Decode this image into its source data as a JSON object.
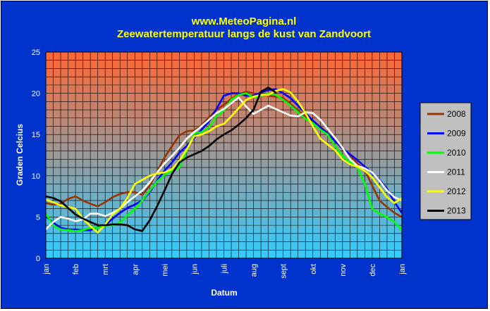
{
  "chart_data": {
    "type": "line",
    "title": "www.MeteoPagina.nl",
    "subtitle": "Zeewatertemperatuur langs de kust van Zandvoort",
    "xlabel": "Datum",
    "ylabel": "Graden Celcius",
    "ylim": [
      0,
      25
    ],
    "yticks": [
      0,
      5,
      10,
      15,
      20,
      25
    ],
    "xlim": [
      0,
      12
    ],
    "xtick_labels": [
      "jan",
      "feb",
      "mrt",
      "apr",
      "mei",
      "jun",
      "juli",
      "aug",
      "sept",
      "okt",
      "nov",
      "dec",
      "jan"
    ],
    "grid": true,
    "legend": "right",
    "background_gradient": [
      "#ff6633",
      "#33ccff"
    ],
    "colors": {
      "2008": "#993300",
      "2009": "#0000ff",
      "2010": "#00ff00",
      "2011": "#ffffff",
      "2012": "#ffff00",
      "2013": "#000000"
    },
    "series": [
      {
        "name": "2008",
        "x": [
          0,
          0.25,
          0.5,
          0.75,
          1.0,
          1.25,
          1.5,
          1.75,
          2.0,
          2.25,
          2.5,
          2.75,
          3.0,
          3.25,
          3.5,
          3.75,
          4.0,
          4.25,
          4.5,
          4.75,
          5.0,
          5.25,
          5.5,
          5.75,
          6.0,
          6.25,
          6.5,
          6.75,
          7.0,
          7.25,
          7.5,
          7.75,
          8.0,
          8.25,
          8.5,
          8.75,
          9.0,
          9.25,
          9.5,
          9.75,
          10.0,
          10.25,
          10.5,
          10.75,
          11.0,
          11.25,
          11.5,
          11.75,
          12.0
        ],
        "values": [
          6.7,
          6.5,
          6.6,
          7.2,
          7.5,
          7.0,
          6.6,
          6.3,
          6.8,
          7.4,
          7.8,
          8.0,
          8.0,
          7.7,
          8.8,
          10.5,
          12.2,
          13.6,
          14.9,
          15.4,
          15.5,
          16.1,
          17.1,
          18.0,
          18.6,
          19.3,
          19.9,
          20.2,
          20.0,
          19.8,
          19.7,
          19.6,
          19.4,
          18.7,
          17.9,
          17.2,
          16.6,
          15.9,
          15.2,
          14.3,
          13.3,
          12.5,
          11.5,
          10.7,
          8.8,
          7.0,
          6.2,
          5.5,
          5.0
        ]
      },
      {
        "name": "2009",
        "x": [
          0,
          0.25,
          0.5,
          0.75,
          1.0,
          1.25,
          1.5,
          1.75,
          2.0,
          2.25,
          2.5,
          2.75,
          3.0,
          3.25,
          3.5,
          3.75,
          4.0,
          4.25,
          4.5,
          4.75,
          5.0,
          5.25,
          5.5,
          5.75,
          6.0,
          6.25,
          6.5,
          6.75,
          7.0,
          7.25,
          7.5,
          7.75,
          8.0,
          8.25,
          8.5,
          8.75,
          9.0,
          9.25,
          9.5,
          9.75,
          10.0,
          10.25,
          10.5,
          10.75,
          11.0,
          11.25,
          11.5,
          11.75,
          12.0
        ],
        "values": [
          5.1,
          4.3,
          3.7,
          3.5,
          3.5,
          3.4,
          3.4,
          3.8,
          4.0,
          4.8,
          5.5,
          6.1,
          6.5,
          7.0,
          8.0,
          9.4,
          10.6,
          11.6,
          12.8,
          13.6,
          14.6,
          15.6,
          16.6,
          18.1,
          19.7,
          20.0,
          20.0,
          19.7,
          19.7,
          20.1,
          20.4,
          20.5,
          20.0,
          19.4,
          18.5,
          17.6,
          16.7,
          15.9,
          15.1,
          14.2,
          13.3,
          12.6,
          11.9,
          11.1,
          10.3,
          9.5,
          8.4,
          6.8,
          5.5
        ]
      },
      {
        "name": "2010",
        "x": [
          0,
          0.25,
          0.5,
          0.75,
          1.0,
          1.25,
          1.5,
          1.75,
          2.0,
          2.25,
          2.5,
          2.75,
          3.0,
          3.25,
          3.5,
          3.75,
          4.0,
          4.25,
          4.5,
          4.75,
          5.0,
          5.25,
          5.5,
          5.75,
          6.0,
          6.25,
          6.5,
          6.75,
          7.0,
          7.25,
          7.5,
          7.75,
          8.0,
          8.25,
          8.5,
          8.75,
          9.0,
          9.25,
          9.5,
          9.75,
          10.0,
          10.25,
          10.5,
          10.75,
          11.0,
          11.25,
          11.5,
          11.75,
          12.0
        ],
        "values": [
          5.4,
          4.0,
          3.5,
          3.4,
          3.3,
          3.4,
          3.7,
          3.7,
          3.9,
          4.0,
          4.3,
          5.2,
          6.0,
          7.0,
          8.2,
          9.3,
          10.1,
          10.6,
          11.0,
          13.1,
          15.1,
          15.3,
          15.9,
          17.2,
          17.9,
          19.2,
          19.8,
          20.0,
          19.5,
          19.7,
          20.0,
          19.8,
          19.2,
          18.5,
          17.7,
          16.9,
          16.4,
          15.6,
          15.0,
          13.6,
          12.4,
          11.7,
          11.0,
          9.0,
          6.0,
          5.4,
          5.0,
          4.4,
          3.4
        ]
      },
      {
        "name": "2011",
        "x": [
          0,
          0.25,
          0.5,
          0.75,
          1.0,
          1.25,
          1.5,
          1.75,
          2.0,
          2.25,
          2.5,
          2.75,
          3.0,
          3.25,
          3.5,
          3.75,
          4.0,
          4.25,
          4.5,
          4.75,
          5.0,
          5.25,
          5.5,
          5.75,
          6.0,
          6.25,
          6.5,
          6.75,
          7.0,
          7.25,
          7.5,
          7.75,
          8.0,
          8.25,
          8.5,
          8.75,
          9.0,
          9.25,
          9.5,
          9.75,
          10.0,
          10.25,
          10.5,
          10.75,
          11.0,
          11.25,
          11.5,
          11.75,
          12.0
        ],
        "values": [
          3.5,
          4.4,
          5.0,
          4.8,
          4.5,
          4.7,
          5.4,
          5.4,
          5.1,
          5.5,
          6.0,
          6.8,
          7.5,
          8.2,
          9.2,
          10.4,
          11.5,
          12.4,
          13.4,
          14.5,
          15.3,
          16.0,
          16.8,
          17.6,
          18.1,
          18.8,
          19.5,
          18.4,
          17.5,
          18.0,
          18.5,
          18.1,
          17.7,
          17.3,
          17.2,
          17.7,
          17.6,
          16.8,
          15.7,
          14.6,
          13.4,
          12.0,
          11.2,
          10.9,
          10.4,
          9.4,
          8.2,
          7.4,
          7.0
        ]
      },
      {
        "name": "2012",
        "x": [
          0,
          0.25,
          0.5,
          0.75,
          1.0,
          1.25,
          1.5,
          1.75,
          2.0,
          2.25,
          2.5,
          2.75,
          3.0,
          3.25,
          3.5,
          3.75,
          4.0,
          4.25,
          4.5,
          4.75,
          5.0,
          5.25,
          5.5,
          5.75,
          6.0,
          6.25,
          6.5,
          6.75,
          7.0,
          7.25,
          7.5,
          7.75,
          8.0,
          8.25,
          8.5,
          8.75,
          9.0,
          9.25,
          9.5,
          9.75,
          10.0,
          10.25,
          10.5,
          10.75,
          11.0,
          11.25,
          11.5,
          11.75,
          12.0
        ],
        "values": [
          7.1,
          6.8,
          6.4,
          6.2,
          6.0,
          4.8,
          3.9,
          3.1,
          4.1,
          5.3,
          6.0,
          7.3,
          9.0,
          9.5,
          10.0,
          10.3,
          10.4,
          10.8,
          11.8,
          13.2,
          14.8,
          15.0,
          15.4,
          16.0,
          16.3,
          17.2,
          18.2,
          19.2,
          19.6,
          19.8,
          19.8,
          20.3,
          20.5,
          20.1,
          19.0,
          17.6,
          16.0,
          14.5,
          13.8,
          13.1,
          12.0,
          11.4,
          11.1,
          10.6,
          9.8,
          8.6,
          7.4,
          6.7,
          7.3
        ]
      },
      {
        "name": "2013",
        "x": [
          0,
          0.25,
          0.5,
          0.75,
          1.0,
          1.25,
          1.5,
          1.75,
          2.0,
          2.25,
          2.5,
          2.75,
          3.0,
          3.25,
          3.5,
          3.75,
          4.0,
          4.25,
          4.5,
          4.75,
          5.0,
          5.25,
          5.5,
          5.75,
          6.0,
          6.25,
          6.5,
          6.75,
          7.0,
          7.25,
          7.5,
          7.75
        ],
        "values": [
          7.5,
          7.3,
          6.9,
          6.1,
          5.3,
          4.8,
          4.4,
          4.0,
          4.0,
          4.1,
          4.1,
          4.0,
          3.5,
          3.3,
          4.6,
          6.3,
          8.2,
          10.2,
          11.6,
          12.2,
          12.6,
          13.0,
          13.6,
          14.4,
          15.0,
          15.5,
          16.2,
          17.0,
          18.0,
          20.2,
          20.7,
          20.1
        ]
      }
    ]
  }
}
